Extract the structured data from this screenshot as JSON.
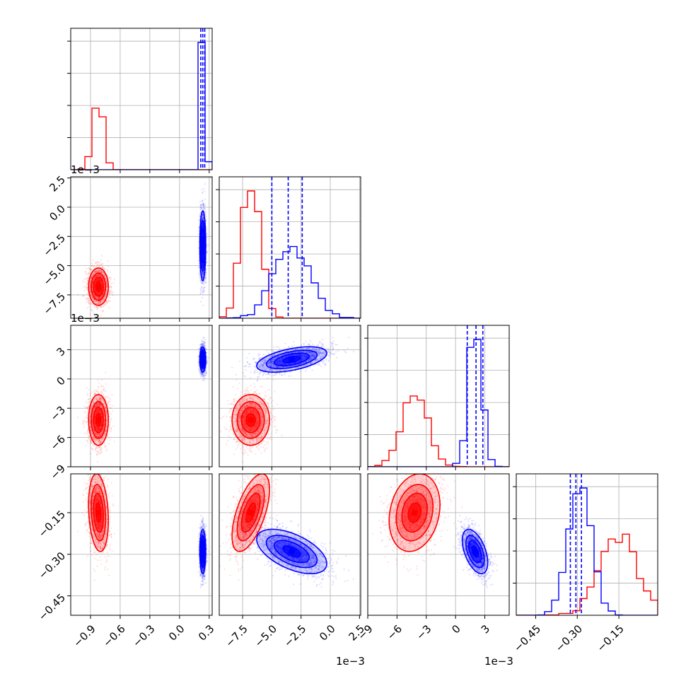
{
  "chart_data": {
    "type": "corner",
    "colors": {
      "series_a": "#ff0000",
      "series_b": "#0000ff"
    },
    "grid": true,
    "parameters": [
      {
        "range": [
          -1.1,
          0.33
        ],
        "ticks": [
          -0.9,
          -0.6,
          -0.3,
          0.0,
          0.3
        ],
        "tick_labels": [
          "−0.9",
          "−0.6",
          "−0.3",
          "0.0",
          "0.3"
        ],
        "offset": ""
      },
      {
        "range": [
          -0.0095,
          0.0026
        ],
        "ticks": [
          -0.0075,
          -0.005,
          -0.0025,
          0.0,
          0.0025
        ],
        "tick_labels": [
          "−7.5",
          "−5.0",
          "−2.5",
          "0.0",
          "2.5"
        ],
        "offset": "1e−3"
      },
      {
        "range": [
          -0.009,
          0.0055
        ],
        "ticks": [
          -0.009,
          -0.006,
          -0.003,
          0.0,
          0.003
        ],
        "tick_labels": [
          "−9",
          "−6",
          "−3",
          "0",
          "3"
        ],
        "offset": "1e−3"
      },
      {
        "range": [
          -0.52,
          -0.01
        ],
        "ticks": [
          -0.45,
          -0.3,
          -0.15
        ],
        "tick_labels": [
          "−0.45",
          "−0.30",
          "−0.15"
        ],
        "offset": ""
      }
    ],
    "series": [
      {
        "color": "#ff0000",
        "means": [
          -0.82,
          -0.0068,
          -0.0042,
          -0.15
        ],
        "sds": [
          0.05,
          0.0008,
          0.0013,
          0.07
        ],
        "correlations": [
          [
            0,
            0,
            0,
            -0.2
          ],
          [
            0,
            0,
            0,
            0.6
          ],
          [
            0,
            0,
            0,
            0.2
          ],
          [
            -0.2,
            0.6,
            0.2,
            0
          ]
        ]
      },
      {
        "color": "#0000ff",
        "means": [
          0.235,
          -0.0033,
          0.002,
          -0.29
        ],
        "sds": [
          0.015,
          0.0015,
          0.00065,
          0.04
        ],
        "correlations": [
          [
            0,
            0,
            0,
            0
          ],
          [
            0,
            0,
            0.5,
            -0.55
          ],
          [
            0,
            0.5,
            0,
            -0.5
          ],
          [
            0,
            -0.55,
            -0.5,
            0
          ]
        ]
      }
    ],
    "quantile_lines": [
      {
        "parameter": 0,
        "values": [
          0.215,
          0.235,
          0.255
        ],
        "color": "#0000ff"
      },
      {
        "parameter": 1,
        "values": [
          -0.005,
          -0.0036,
          -0.0024
        ],
        "color": "#0000ff"
      },
      {
        "parameter": 2,
        "values": [
          0.0012,
          0.0021,
          0.0028
        ],
        "color": "#0000ff"
      },
      {
        "parameter": 3,
        "values": [
          -0.325,
          -0.305,
          -0.285
        ],
        "color": "#0000ff"
      }
    ]
  }
}
